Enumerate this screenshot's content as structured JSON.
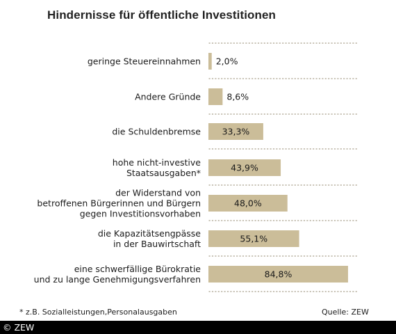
{
  "colors": {
    "bar": "#cbbd99",
    "dotted_line": "#a89f8a",
    "text": "#1a1a1a",
    "footer_bg": "#000000",
    "footer_text": "#ffffff"
  },
  "footnote": "* z.B. Sozialleistungen,Personalausgaben",
  "source": "Quelle: ZEW",
  "copyright": "© ZEW",
  "chart_data": {
    "type": "bar",
    "orientation": "horizontal",
    "title": "Hindernisse für öffentliche Investitionen",
    "categories": [
      [
        "geringe Steuereinnahmen"
      ],
      [
        "Andere Gründe"
      ],
      [
        "die Schuldenbremse"
      ],
      [
        "hohe nicht-investive",
        "Staatsausgaben*"
      ],
      [
        "der Widerstand von",
        "betroffenen Bürgerinnen und Bürgern",
        "gegen Investitionsvorhaben"
      ],
      [
        "die Kapazitätsengpässe",
        "in der Bauwirtschaft"
      ],
      [
        "eine schwerfällige Bürokratie",
        "und zu lange Genehmigungsverfahren"
      ]
    ],
    "values": [
      2.0,
      8.6,
      33.3,
      43.9,
      48.0,
      55.1,
      84.8
    ],
    "value_labels": [
      "2,0%",
      "8,6%",
      "33,3%",
      "43,9%",
      "48,0%",
      "55,1%",
      "84,8%"
    ],
    "unit": "%",
    "xlim": [
      0,
      100
    ],
    "grid": false,
    "legend": "none"
  }
}
